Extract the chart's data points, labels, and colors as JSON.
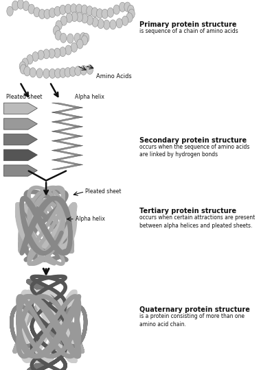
{
  "bg_color": "#ffffff",
  "fig_width": 3.96,
  "fig_height": 5.4,
  "dpi": 100,
  "arrow_color": "#111111",
  "text_color": "#111111",
  "gray_light": "#bbbbbb",
  "gray_mid": "#888888",
  "gray_dark": "#555555",
  "primary_title": "Primary protein structure",
  "primary_desc": "is sequence of a chain of amino acids",
  "primary_label": "Amino Acids",
  "secondary_title": "Secondary protein structure",
  "secondary_desc": "occurs when the sequence of amino acids\nare linked by hydrogen bonds",
  "secondary_label1": "Pleated sheet",
  "secondary_label2": "Alpha helix",
  "tertiary_title": "Tertiary protein structure",
  "tertiary_desc": "occurs when certain attractions are present\nbetween alpha helices and pleated sheets.",
  "tertiary_label1": "Pleated sheet",
  "tertiary_label2": "Alpha helix",
  "quaternary_title": "Quaternary protein structure",
  "quaternary_desc": "is a protein consisting of more than one\namino acid chain."
}
